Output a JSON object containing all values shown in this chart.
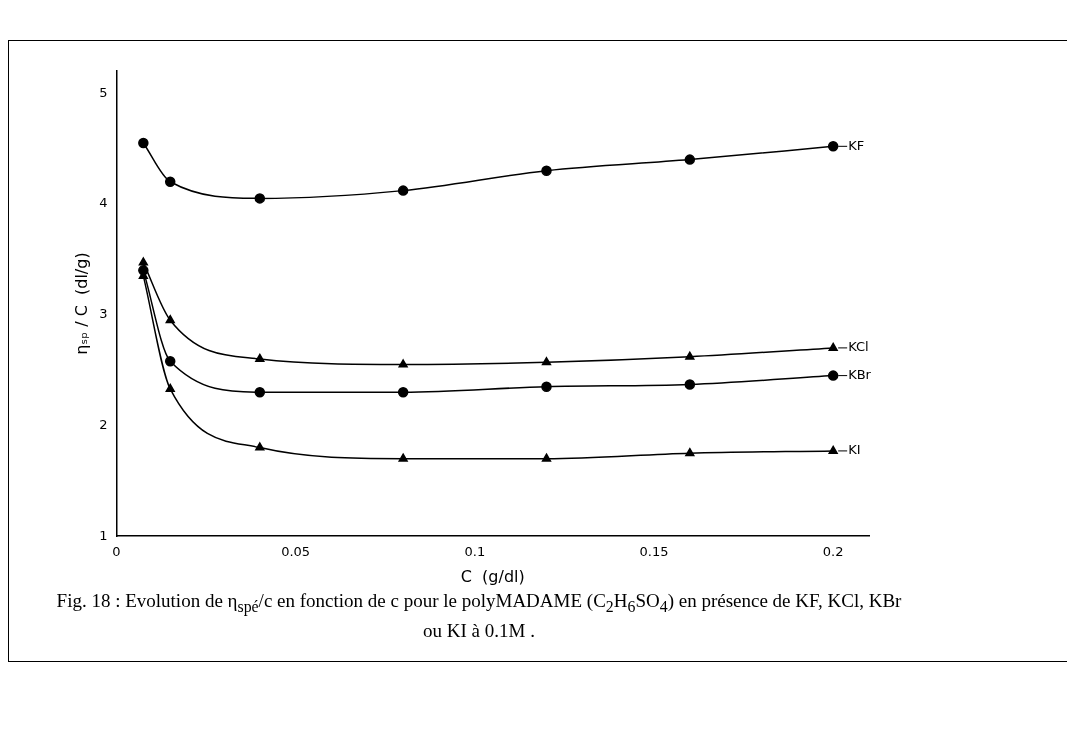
{
  "chart_data": {
    "type": "line",
    "xlabel": "C  (g/dl)",
    "ylabel": "ηₛₚ / C  (dl/g)",
    "xlim": [
      0,
      0.21
    ],
    "xticks": [
      0,
      0.05,
      0.1,
      0.15,
      0.2
    ],
    "ylim": [
      1,
      5.2
    ],
    "yticks": [
      1,
      2,
      3,
      4,
      5
    ],
    "grid": false,
    "legend": "right",
    "line_style": "solid",
    "x": [
      0.0075,
      0.015,
      0.04,
      0.08,
      0.12,
      0.16,
      0.2
    ],
    "series": [
      {
        "name": "KF",
        "color": "#000000",
        "marker": "circle",
        "values": [
          4.55,
          4.2,
          4.05,
          4.12,
          4.3,
          4.4,
          4.52
        ]
      },
      {
        "name": "KCl",
        "color": "#000000",
        "marker": "triangle",
        "values": [
          3.47,
          2.95,
          2.6,
          2.55,
          2.57,
          2.62,
          2.7
        ]
      },
      {
        "name": "KBr",
        "color": "#000000",
        "marker": "circle",
        "values": [
          3.4,
          2.58,
          2.3,
          2.3,
          2.35,
          2.37,
          2.45
        ]
      },
      {
        "name": "KI",
        "color": "#000000",
        "marker": "triangle",
        "values": [
          3.35,
          2.33,
          1.8,
          1.7,
          1.7,
          1.75,
          1.77
        ]
      }
    ],
    "annotations": [
      "Fig. 18 : Evolution de η$_{spé}$/c  en fonction de c pour le polyMADAME (C$_{2}$H$_{6}$SO$_{4}$) en présence de KF, KCl, KBr ou KI à 0.1M ."
    ]
  }
}
